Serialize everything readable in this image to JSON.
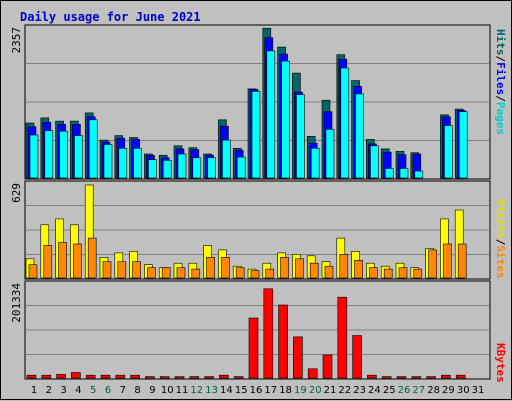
{
  "title": "Daily usage for June 2021",
  "colors": {
    "hits": "#006666",
    "files": "#0000ff",
    "pages": "#00ffff",
    "visits": "#ffff00",
    "sites": "#ff8800",
    "kbytes": "#ff0000",
    "weekday_tick": "#000000",
    "weekend_tick": "#006633",
    "panel_bg": "#c0c0c0"
  },
  "panels": {
    "top": {
      "max_label": "2357",
      "labels": [
        "Pages",
        "/",
        "Files",
        "/",
        "Hits"
      ]
    },
    "mid": {
      "max_label": "629",
      "labels": [
        "Sites",
        "/",
        "Visits"
      ]
    },
    "bottom": {
      "max_label": "201334",
      "labels": [
        "KBytes"
      ]
    }
  },
  "chart_data": [
    {
      "type": "bar",
      "title": "Daily usage for June 2021",
      "categories": [
        "1",
        "2",
        "3",
        "4",
        "5",
        "6",
        "7",
        "8",
        "9",
        "10",
        "11",
        "12",
        "13",
        "14",
        "15",
        "16",
        "17",
        "18",
        "19",
        "20",
        "21",
        "22",
        "23",
        "24",
        "25",
        "26",
        "27",
        "28",
        "29",
        "30",
        "31"
      ],
      "weekend_days": [
        "5",
        "6",
        "12",
        "13",
        "19",
        "20",
        "26",
        "27"
      ],
      "ylim": [
        0,
        2357
      ],
      "series": [
        {
          "name": "Hits",
          "values": [
            870,
            950,
            900,
            900,
            1030,
            600,
            670,
            640,
            380,
            360,
            510,
            480,
            380,
            920,
            470,
            1410,
            2370,
            2070,
            1660,
            660,
            1230,
            1950,
            1540,
            610,
            460,
            420,
            400,
            0,
            1000,
            1090,
            0
          ]
        },
        {
          "name": "Files",
          "values": [
            810,
            880,
            850,
            850,
            970,
            570,
            630,
            610,
            360,
            320,
            460,
            450,
            360,
            820,
            440,
            1400,
            2220,
            1960,
            1360,
            550,
            1050,
            1880,
            1450,
            540,
            410,
            370,
            380,
            0,
            970,
            1070,
            0
          ]
        },
        {
          "name": "Pages",
          "values": [
            680,
            750,
            740,
            670,
            920,
            530,
            470,
            470,
            290,
            280,
            380,
            320,
            320,
            600,
            330,
            1370,
            2010,
            1850,
            1320,
            470,
            770,
            1740,
            1330,
            510,
            150,
            150,
            110,
            0,
            830,
            1050,
            0
          ]
        }
      ]
    },
    {
      "type": "bar",
      "categories": [
        "1",
        "2",
        "3",
        "4",
        "5",
        "6",
        "7",
        "8",
        "9",
        "10",
        "11",
        "12",
        "13",
        "14",
        "15",
        "16",
        "17",
        "18",
        "19",
        "20",
        "21",
        "22",
        "23",
        "24",
        "25",
        "26",
        "27",
        "28",
        "29",
        "30",
        "31"
      ],
      "ylim": [
        0,
        629
      ],
      "series": [
        {
          "name": "Visits",
          "values": [
            130,
            360,
            400,
            360,
            629,
            140,
            170,
            180,
            90,
            70,
            100,
            100,
            220,
            190,
            80,
            60,
            100,
            170,
            160,
            150,
            110,
            270,
            180,
            100,
            80,
            100,
            70,
            200,
            400,
            460,
            0
          ]
        },
        {
          "name": "Sites",
          "values": [
            90,
            220,
            240,
            230,
            270,
            110,
            110,
            110,
            70,
            70,
            70,
            60,
            140,
            140,
            70,
            50,
            60,
            140,
            130,
            100,
            80,
            160,
            120,
            70,
            60,
            70,
            60,
            190,
            230,
            230,
            0
          ]
        }
      ]
    },
    {
      "type": "bar",
      "categories": [
        "1",
        "2",
        "3",
        "4",
        "5",
        "6",
        "7",
        "8",
        "9",
        "10",
        "11",
        "12",
        "13",
        "14",
        "15",
        "16",
        "17",
        "18",
        "19",
        "20",
        "21",
        "22",
        "23",
        "24",
        "25",
        "26",
        "27",
        "28",
        "29",
        "30",
        "31"
      ],
      "ylim": [
        0,
        201334
      ],
      "series": [
        {
          "name": "KBytes",
          "values": [
            6000,
            6000,
            8000,
            12000,
            6000,
            6000,
            6000,
            6000,
            3000,
            3000,
            3000,
            3000,
            3000,
            6000,
            3000,
            130000,
            193000,
            158000,
            89000,
            20000,
            50000,
            175000,
            92000,
            6000,
            3000,
            3000,
            3000,
            3000,
            6000,
            6000,
            0
          ]
        }
      ]
    }
  ]
}
